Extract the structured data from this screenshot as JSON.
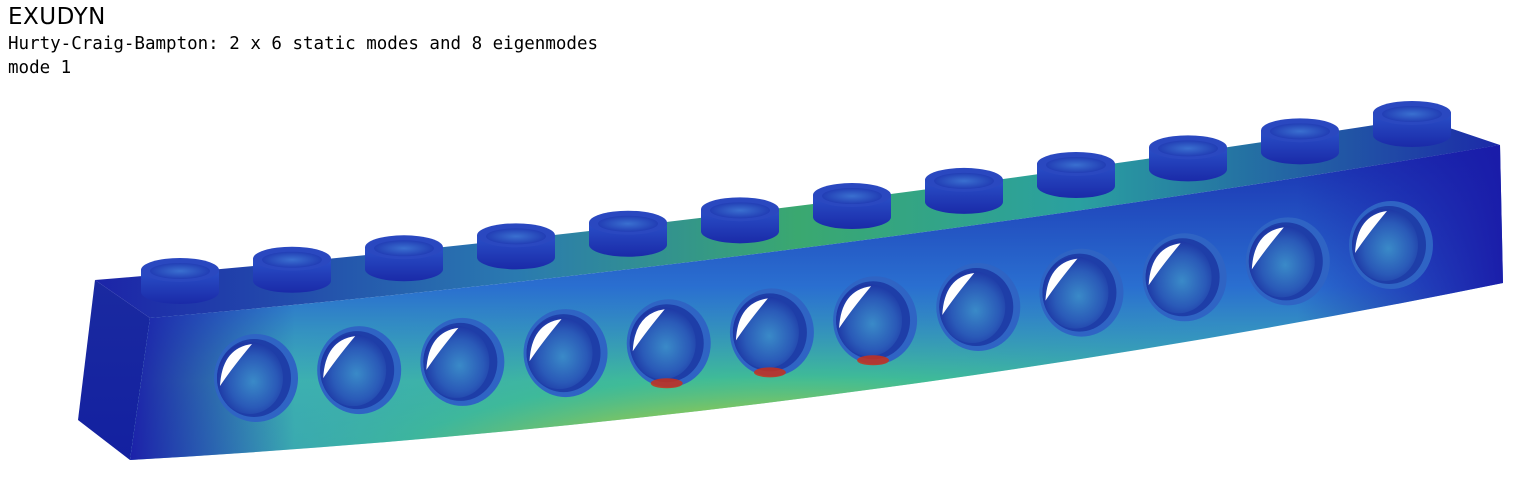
{
  "window": {
    "title": "EXUDYN",
    "subtitle": "Hurty-Craig-Bampton: 2 x 6 static modes and 8 eigenmodes",
    "mode_label": "mode 1"
  },
  "scene": {
    "object": "beam-with-holes",
    "hole_count": 12,
    "stud_count": 12,
    "colormap": [
      "#1a1aa8",
      "#1f5fd0",
      "#2fa8c8",
      "#3fc07a",
      "#a8d030",
      "#f0b020",
      "#e04a18",
      "#c01a10"
    ]
  }
}
